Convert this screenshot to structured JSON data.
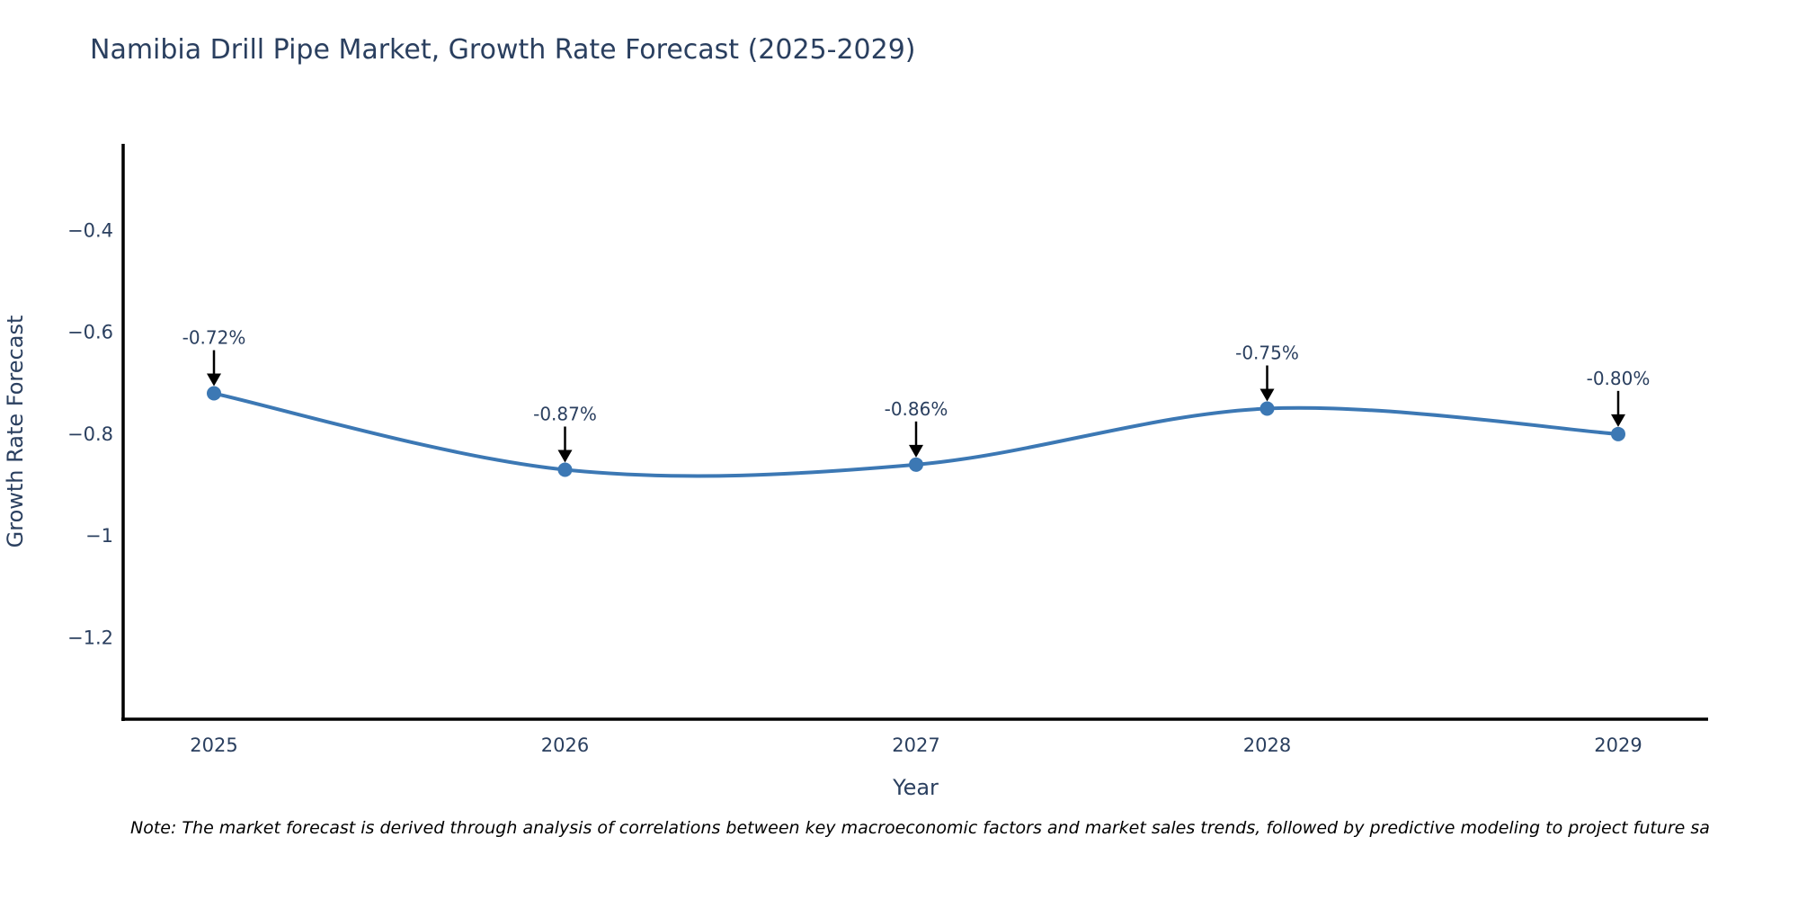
{
  "chart": {
    "title": "Namibia Drill Pipe Market, Growth Rate Forecast (2025-2029)"
  },
  "chart_data": {
    "type": "line",
    "line_shape": "spline",
    "categories": [
      "2025",
      "2026",
      "2027",
      "2028",
      "2029"
    ],
    "values": [
      -0.72,
      -0.87,
      -0.86,
      -0.75,
      -0.8
    ],
    "point_labels": [
      "-0.72%",
      "-0.87%",
      "-0.86%",
      "-0.75%",
      "-0.80%"
    ],
    "title": "Namibia Drill Pipe Market, Growth Rate Forecast (2025-2029)",
    "xlabel": "Year",
    "ylabel": "Growth Rate Forecast",
    "ylim": [
      -1.36,
      -0.23
    ],
    "yticks": {
      "values": [
        -0.4,
        -0.6,
        -0.8,
        -1.0,
        -1.2
      ],
      "labels": [
        "−0.4",
        "−0.6",
        "−0.8",
        "−1",
        "−1.2"
      ]
    },
    "grid": false,
    "legend": "none",
    "markers": true,
    "annotations_arrows": true,
    "colors": {
      "line": "#3c78b4",
      "marker": "#3c78b4",
      "text": "#2a3f5f",
      "axis": "#000000",
      "arrow": "#000000"
    }
  },
  "note": "Note: The market forecast is derived through analysis of correlations between key macroeconomic factors and market sales trends, followed by predictive modeling to project future sa"
}
